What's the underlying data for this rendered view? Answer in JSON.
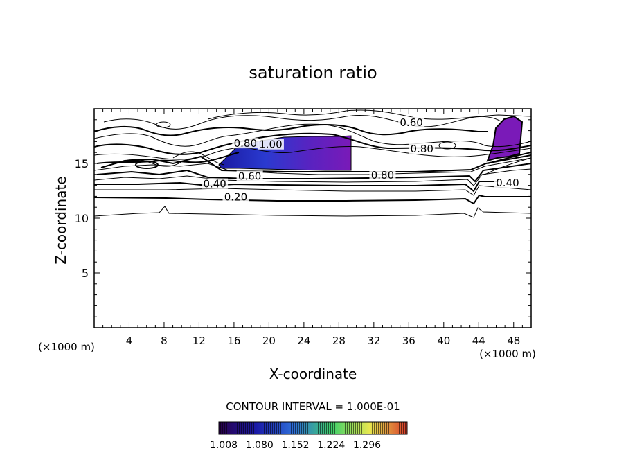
{
  "chart_data": {
    "type": "contour",
    "title": "saturation ratio",
    "xlabel": "X-coordinate",
    "ylabel": "Z-coordinate",
    "x_unit": "(×1000 m)",
    "y_unit": "(×1000 m)",
    "xlim": [
      0,
      50
    ],
    "ylim": [
      0,
      20
    ],
    "xticks": [
      4,
      8,
      12,
      16,
      20,
      24,
      28,
      32,
      36,
      40,
      44,
      48
    ],
    "yticks": [
      5,
      10,
      15
    ],
    "contour_interval_text": "CONTOUR INTERVAL = 1.000E-01",
    "contour_labels": [
      {
        "text": "0.20",
        "x": 16.2,
        "z": 11.8
      },
      {
        "text": "0.40",
        "x": 13.8,
        "z": 13.0
      },
      {
        "text": "0.60",
        "x": 17.8,
        "z": 13.7
      },
      {
        "text": "0.80",
        "x": 33.0,
        "z": 13.8
      },
      {
        "text": "0.40",
        "x": 47.3,
        "z": 13.1
      },
      {
        "text": "0.80",
        "x": 37.5,
        "z": 16.2
      },
      {
        "text": "0.60",
        "x": 36.3,
        "z": 18.6
      },
      {
        "text": "0.80",
        "x": 17.3,
        "z": 16.7
      },
      {
        "text": "1.00",
        "x": 20.2,
        "z": 16.6
      }
    ],
    "colorbar": {
      "ticks": [
        "1.008",
        "1.080",
        "1.152",
        "1.224",
        "1.296"
      ],
      "colors": [
        "#2a004a",
        "#1a1aa8",
        "#2f6fd8",
        "#3fd06a",
        "#e8e850",
        "#d83a2a"
      ]
    },
    "fill_color": "#6a1ab0"
  }
}
